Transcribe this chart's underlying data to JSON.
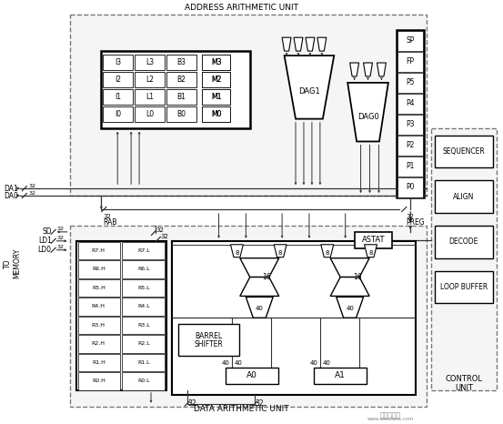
{
  "bg_color": "#ffffff",
  "fig_width": 5.53,
  "fig_height": 4.66,
  "dpi": 100,
  "addr_title": "ADDRESS ARITHMETIC UNIT",
  "data_title": "DATA ARITHMETIC UNIT",
  "ctrl_title": "CONTROL\nUNIT",
  "p_regs": [
    "SP",
    "FP",
    "P5",
    "P4",
    "P3",
    "P2",
    "P1",
    "P0"
  ],
  "ilbm_rows": [
    [
      "I3",
      "L3",
      "B3"
    ],
    [
      "I2",
      "L2",
      "B2"
    ],
    [
      "I1",
      "L1",
      "B1"
    ],
    [
      "I0",
      "L0",
      "B0"
    ]
  ],
  "m_rows": [
    "M3",
    "M2",
    "M1",
    "M0"
  ],
  "rh_labels": [
    "R7.H",
    "R6.H",
    "R5.H",
    "R4.H",
    "R3.H",
    "R2.H",
    "R1.H",
    "R0.H"
  ],
  "rl_labels": [
    "R7.L",
    "R6.L",
    "R5.L",
    "R4.L",
    "R3.L",
    "R2.L",
    "R1.L",
    "R0.L"
  ],
  "ctrl_boxes": [
    "SEQUENCER",
    "ALIGN",
    "DECODE",
    "LOOP BUFFER"
  ]
}
